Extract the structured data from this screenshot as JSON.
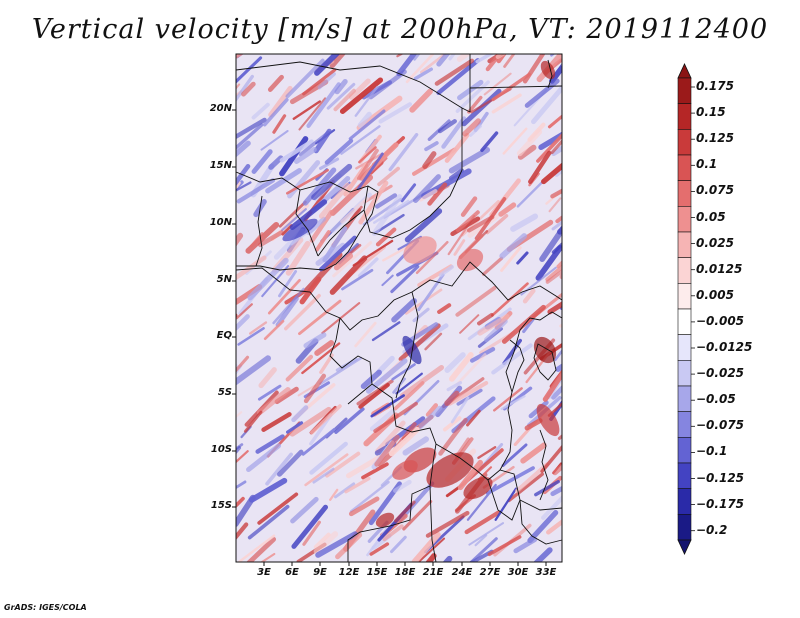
{
  "title": "Vertical velocity [m/s] at 200hPa, VT: 2019112400",
  "credit": "GrADS: IGES/COLA",
  "map": {
    "lat_labels": [
      "20N",
      "15N",
      "10N",
      "5N",
      "EQ",
      "5S",
      "10S",
      "15S"
    ],
    "lon_labels": [
      "3E",
      "6E",
      "9E",
      "12E",
      "15E",
      "18E",
      "21E",
      "24E",
      "27E",
      "30E",
      "33E"
    ]
  },
  "colorbar": {
    "labels": [
      "0.175",
      "0.15",
      "0.125",
      "0.1",
      "0.075",
      "0.05",
      "0.025",
      "0.0125",
      "0.005",
      "−0.005",
      "−0.0125",
      "−0.025",
      "−0.05",
      "−0.075",
      "−0.1",
      "−0.125",
      "−0.175",
      "−0.2"
    ],
    "colors": [
      "#9b1a1a",
      "#b52626",
      "#c93a3a",
      "#d95454",
      "#e46e6e",
      "#ee9090",
      "#f6b4b4",
      "#fbd4d4",
      "#fdecec",
      "#ffffff",
      "#e6e6fb",
      "#c9c9f3",
      "#a7a7ea",
      "#8585e0",
      "#6363d3",
      "#4343c2",
      "#2a2aa8",
      "#1a1a86"
    ],
    "top_arrow_color": "#8a1414",
    "bottom_arrow_color": "#14146e"
  }
}
